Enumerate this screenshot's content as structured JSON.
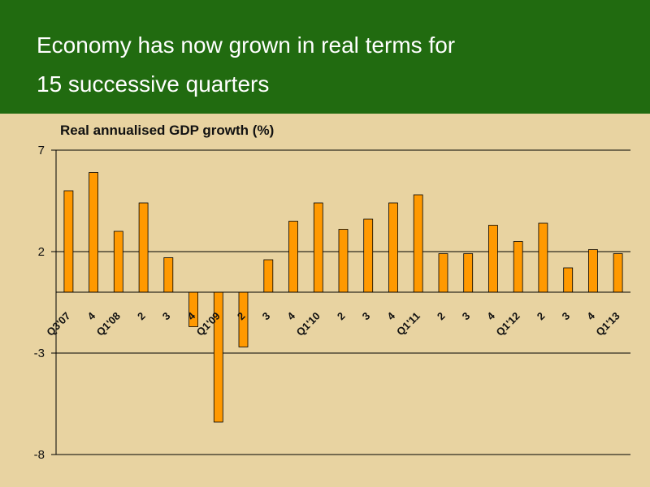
{
  "slide": {
    "title_line1": "Economy has now grown in real terms for",
    "title_line2": "15 successive quarters"
  },
  "colors": {
    "banner": "#216b10",
    "background": "#e8d3a1",
    "bar_fill": "#ff9900",
    "bar_stroke": "#000000"
  },
  "chart_data": {
    "type": "bar",
    "title": "Real annualised GDP growth (%)",
    "categories": [
      "Q3'07",
      "4",
      "Q1'08",
      "2",
      "3",
      "4",
      "Q1'09",
      "2",
      "3",
      "4",
      "Q1'10",
      "2",
      "3",
      "4",
      "Q1'11",
      "2",
      "3",
      "4",
      "Q1'12",
      "2",
      "3",
      "4",
      "Q1'13"
    ],
    "values": [
      5.0,
      5.9,
      3.0,
      4.4,
      1.7,
      -1.7,
      -6.4,
      -2.7,
      1.6,
      3.5,
      4.4,
      3.1,
      3.6,
      4.4,
      4.8,
      1.9,
      1.9,
      3.3,
      2.5,
      3.4,
      1.2,
      2.1,
      1.9
    ],
    "yticks": [
      7,
      2,
      -3,
      -8
    ],
    "ylim": [
      -8,
      7
    ],
    "grid": true
  }
}
